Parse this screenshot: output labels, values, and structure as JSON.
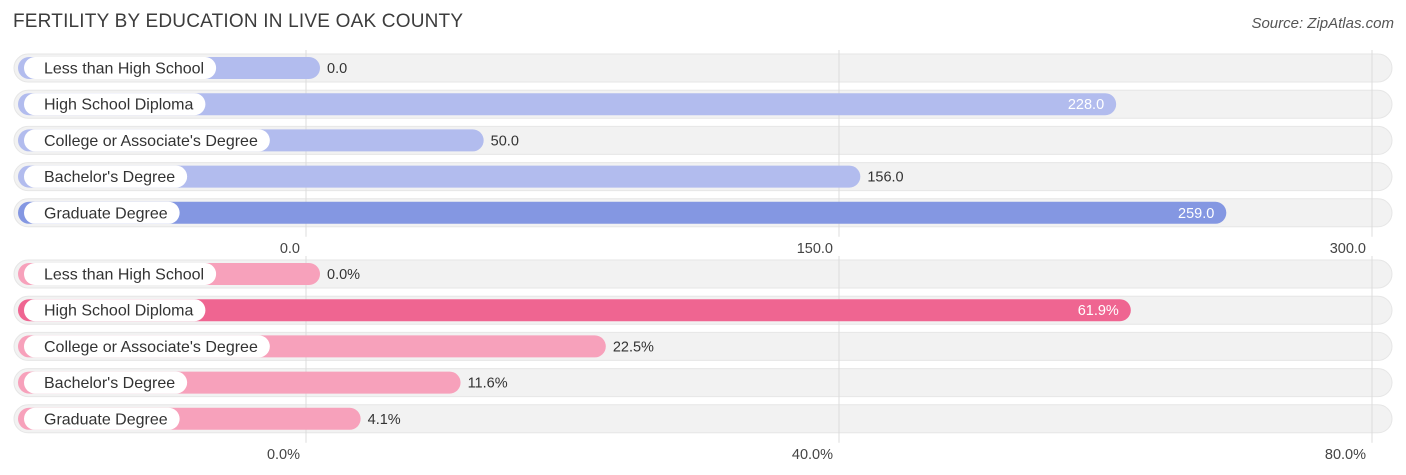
{
  "title": "FERTILITY BY EDUCATION IN LIVE OAK COUNTY",
  "source": "Source: ZipAtlas.com",
  "colors": {
    "blue_light": "#b2bcee",
    "blue_strong": "#8497e2",
    "pink_light": "#f7a1bb",
    "pink_strong": "#ef6591",
    "track": "#f2f2f2",
    "grid": "#dcdcdc"
  },
  "chart_data": [
    {
      "type": "bar",
      "orientation": "horizontal",
      "categories": [
        "Less than High School",
        "High School Diploma",
        "College or Associate's Degree",
        "Bachelor's Degree",
        "Graduate Degree"
      ],
      "values": [
        0.0,
        228.0,
        50.0,
        156.0,
        259.0
      ],
      "value_labels": [
        "0.0",
        "228.0",
        "50.0",
        "156.0",
        "259.0"
      ],
      "xlim": [
        0,
        300
      ],
      "ticks": [
        0,
        150,
        300
      ],
      "tick_labels": [
        "0.0",
        "150.0",
        "300.0"
      ],
      "palette": "blue"
    },
    {
      "type": "bar",
      "orientation": "horizontal",
      "categories": [
        "Less than High School",
        "High School Diploma",
        "College or Associate's Degree",
        "Bachelor's Degree",
        "Graduate Degree"
      ],
      "values": [
        0.0,
        61.9,
        22.5,
        11.6,
        4.1
      ],
      "value_labels": [
        "0.0%",
        "61.9%",
        "22.5%",
        "11.6%",
        "4.1%"
      ],
      "xlim": [
        0,
        80
      ],
      "ticks": [
        0,
        40,
        80
      ],
      "tick_labels": [
        "0.0%",
        "40.0%",
        "80.0%"
      ],
      "palette": "pink"
    }
  ]
}
